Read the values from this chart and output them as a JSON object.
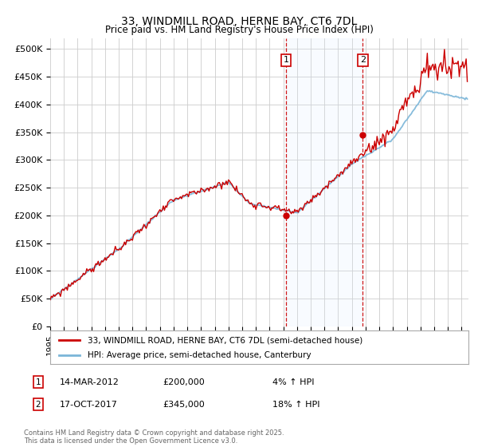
{
  "title": "33, WINDMILL ROAD, HERNE BAY, CT6 7DL",
  "subtitle": "Price paid vs. HM Land Registry's House Price Index (HPI)",
  "ylim": [
    0,
    520000
  ],
  "yticks": [
    0,
    50000,
    100000,
    150000,
    200000,
    250000,
    300000,
    350000,
    400000,
    450000,
    500000
  ],
  "ytick_labels": [
    "£0",
    "£50K",
    "£100K",
    "£150K",
    "£200K",
    "£250K",
    "£300K",
    "£350K",
    "£400K",
    "£450K",
    "£500K"
  ],
  "hpi_color": "#7ab5d8",
  "price_color": "#cc0000",
  "marker_color": "#cc0000",
  "bg_color": "#ffffff",
  "grid_color": "#cccccc",
  "sale1_year": 2012,
  "sale1_month": 3,
  "sale1_price": 200000,
  "sale2_year": 2017,
  "sale2_month": 10,
  "sale2_price": 345000,
  "shade_color": "#ddeeff",
  "legend_line1": "33, WINDMILL ROAD, HERNE BAY, CT6 7DL (semi-detached house)",
  "legend_line2": "HPI: Average price, semi-detached house, Canterbury",
  "footnote": "Contains HM Land Registry data © Crown copyright and database right 2025.\nThis data is licensed under the Open Government Licence v3.0.",
  "xstart": 1995,
  "xend": 2025.5,
  "hpi_seed": 17,
  "price_seed": 99
}
